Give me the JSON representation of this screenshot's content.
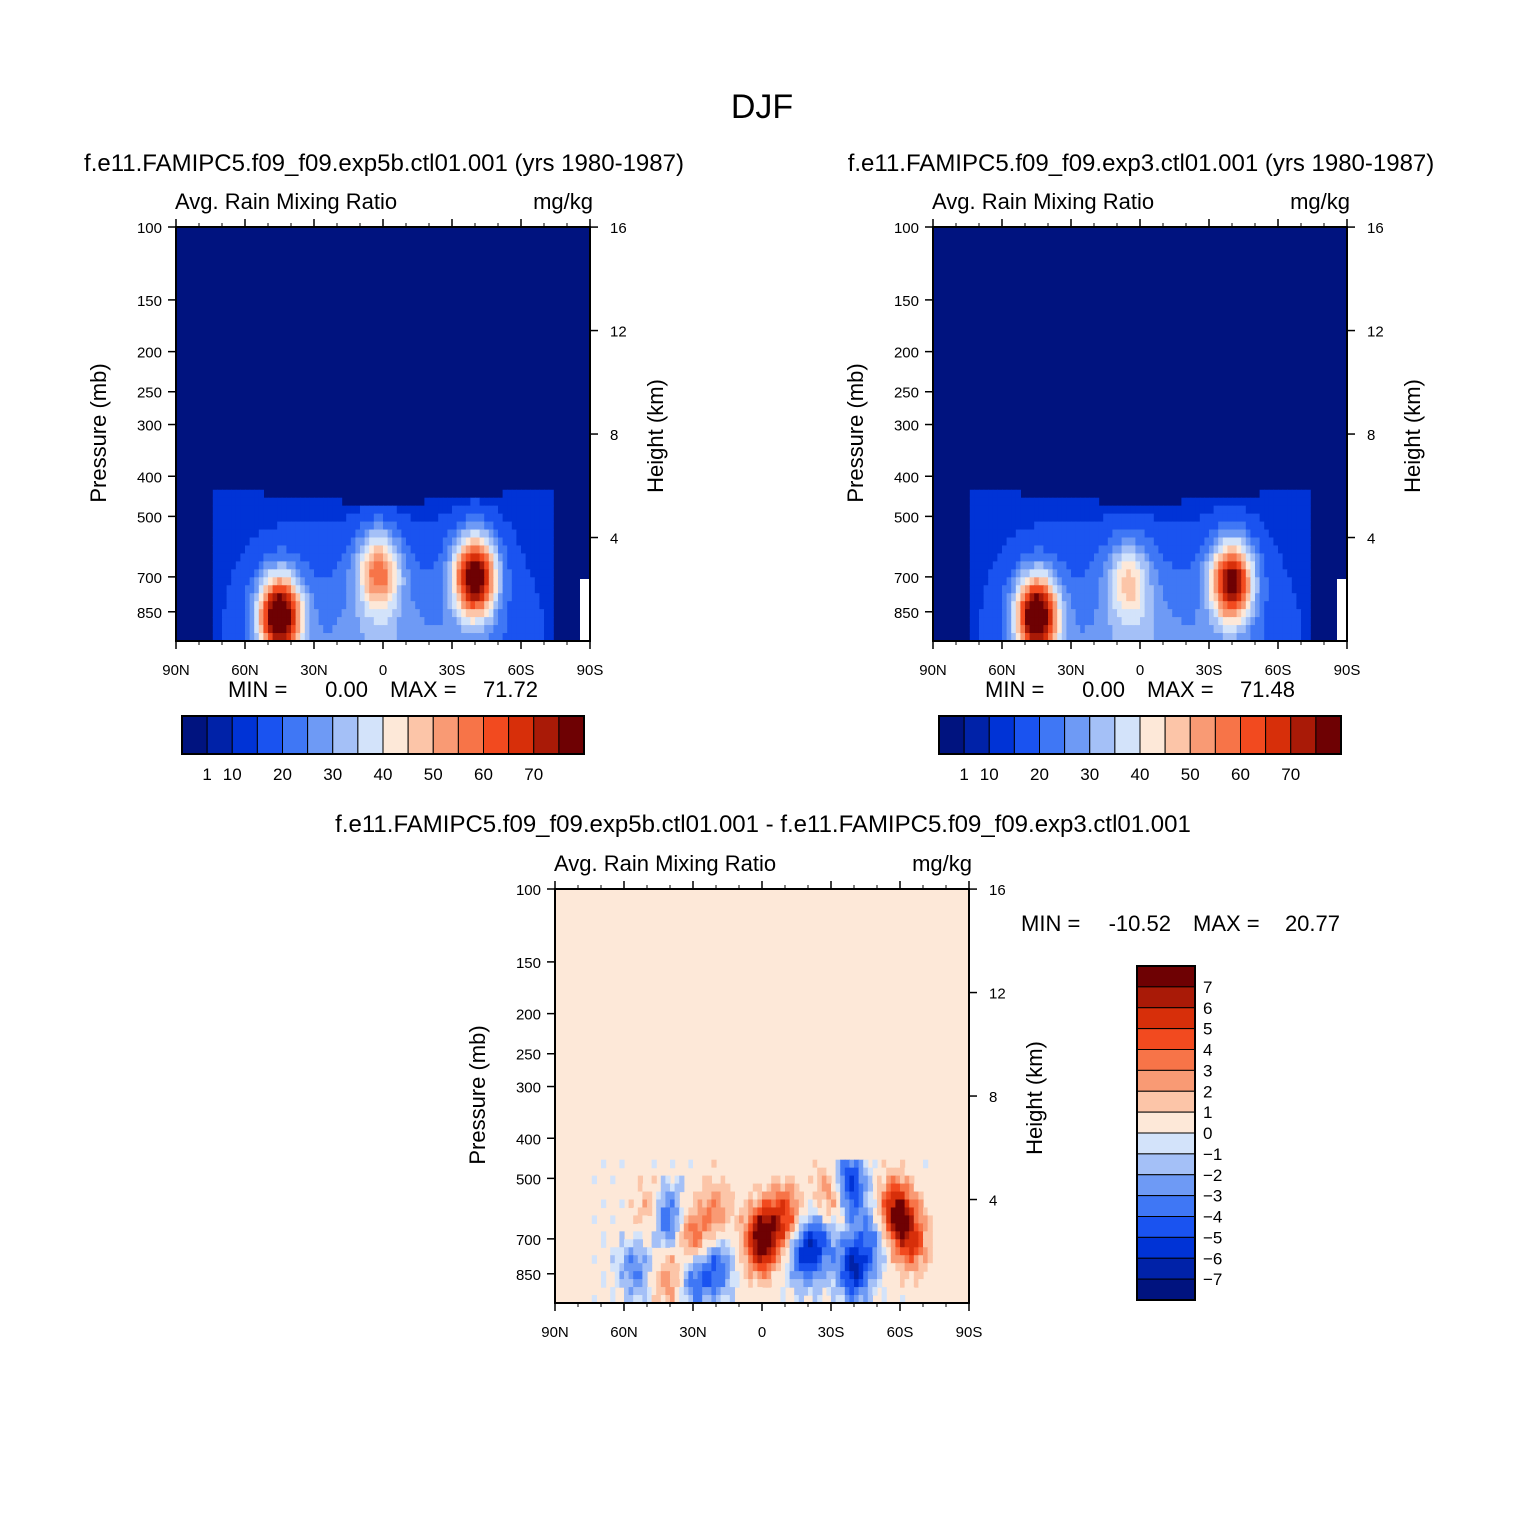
{
  "title": "DJF",
  "colors": {
    "abs": [
      "#00137f",
      "#0022a8",
      "#0033d6",
      "#1a53f0",
      "#3f77f5",
      "#6e9af5",
      "#a4c0f7",
      "#d3e3fa",
      "#fde8d8",
      "#fcc5a8",
      "#f99a74",
      "#f77448",
      "#f24a1f",
      "#d72f0a",
      "#a91a07",
      "#6e0103"
    ],
    "diff": [
      "#00137f",
      "#0022a8",
      "#0033d6",
      "#1a53f0",
      "#3f77f5",
      "#6e9af5",
      "#a4c0f7",
      "#d3e3fa",
      "#fde8d8",
      "#fcc5a8",
      "#f99a74",
      "#f77448",
      "#f24a1f",
      "#d72f0a",
      "#a91a07",
      "#6e0103"
    ]
  },
  "chart_data": [
    {
      "type": "heatmap",
      "id": "top-left",
      "title": "f.e11.FAMIPC5.f09_f09.exp5b.ctl01.001 (yrs 1980-1987)",
      "left_label": "Avg. Rain Mixing Ratio",
      "right_label": "mg/kg",
      "ylabel": "Pressure (mb)",
      "ylabel_right": "Height (km)",
      "x_ticks": [
        "90N",
        "60N",
        "30N",
        "0",
        "30S",
        "60S",
        "90S"
      ],
      "y_ticks": [
        "100",
        "150",
        "200",
        "250",
        "300",
        "400",
        "500",
        "700",
        "850"
      ],
      "y_ticks_right": [
        "16",
        "12",
        "8",
        "4"
      ],
      "min_label": "MIN =",
      "min_value": "0.00",
      "max_label": "MAX =",
      "max_value": "71.72",
      "colorbar_labels": [
        "1",
        "10",
        "20",
        "30",
        "40",
        "50",
        "60",
        "70"
      ],
      "blobs": [
        {
          "lat": 45,
          "p": 870,
          "amp": 72
        },
        {
          "lat": -40,
          "p": 700,
          "amp": 68
        },
        {
          "lat": 2,
          "p": 680,
          "amp": 38
        }
      ]
    },
    {
      "type": "heatmap",
      "id": "top-right",
      "title": "f.e11.FAMIPC5.f09_f09.exp3.ctl01.001 (yrs 1980-1987)",
      "left_label": "Avg. Rain Mixing Ratio",
      "right_label": "mg/kg",
      "ylabel": "Pressure (mb)",
      "ylabel_right": "Height (km)",
      "x_ticks": [
        "90N",
        "60N",
        "30N",
        "0",
        "30S",
        "60S",
        "90S"
      ],
      "y_ticks": [
        "100",
        "150",
        "200",
        "250",
        "300",
        "400",
        "500",
        "700",
        "850"
      ],
      "y_ticks_right": [
        "16",
        "12",
        "8",
        "4"
      ],
      "min_label": "MIN =",
      "min_value": "0.00",
      "max_label": "MAX =",
      "max_value": "71.48",
      "colorbar_labels": [
        "1",
        "10",
        "20",
        "30",
        "40",
        "50",
        "60",
        "70"
      ],
      "blobs": [
        {
          "lat": 45,
          "p": 870,
          "amp": 71
        },
        {
          "lat": -40,
          "p": 720,
          "amp": 62
        },
        {
          "lat": 5,
          "p": 720,
          "amp": 25
        }
      ]
    },
    {
      "type": "heatmap",
      "id": "bottom",
      "title": "f.e11.FAMIPC5.f09_f09.exp5b.ctl01.001 - f.e11.FAMIPC5.f09_f09.exp3.ctl01.001",
      "left_label": "Avg. Rain Mixing Ratio",
      "right_label": "mg/kg",
      "ylabel": "Pressure (mb)",
      "ylabel_right": "Height (km)",
      "x_ticks": [
        "90N",
        "60N",
        "30N",
        "0",
        "30S",
        "60S",
        "90S"
      ],
      "y_ticks": [
        "100",
        "150",
        "200",
        "250",
        "300",
        "400",
        "500",
        "700",
        "850"
      ],
      "y_ticks_right": [
        "16",
        "12",
        "8",
        "4"
      ],
      "min_label": "MIN =",
      "min_value": "-10.52",
      "max_label": "MAX =",
      "max_value": "20.77",
      "colorbar_labels": [
        "7",
        "6",
        "5",
        "4",
        "3",
        "2",
        "1",
        "0",
        "-1",
        "-2",
        "-3",
        "-4",
        "-5",
        "-6",
        "-7"
      ],
      "blobs": [
        {
          "lat": 0,
          "p": 700,
          "amp": 9
        },
        {
          "lat": -10,
          "p": 620,
          "amp": 5
        },
        {
          "lat": 30,
          "p": 720,
          "amp": 5
        },
        {
          "lat": 20,
          "p": 600,
          "amp": 3
        },
        {
          "lat": 48,
          "p": 600,
          "amp": 3
        },
        {
          "lat": -58,
          "p": 600,
          "amp": 7
        },
        {
          "lat": -65,
          "p": 700,
          "amp": 5
        },
        {
          "lat": -30,
          "p": 560,
          "amp": 4
        },
        {
          "lat": 40,
          "p": 880,
          "amp": 3
        },
        {
          "lat": -18,
          "p": 760,
          "amp": -5
        },
        {
          "lat": -40,
          "p": 830,
          "amp": -6
        },
        {
          "lat": 30,
          "p": 850,
          "amp": -5
        },
        {
          "lat": 42,
          "p": 620,
          "amp": -5
        },
        {
          "lat": 20,
          "p": 820,
          "amp": -4
        },
        {
          "lat": -38,
          "p": 520,
          "amp": -6
        },
        {
          "lat": -26,
          "p": 700,
          "amp": -4
        },
        {
          "lat": 55,
          "p": 830,
          "amp": -3
        },
        {
          "lat": -48,
          "p": 700,
          "amp": -3
        }
      ]
    }
  ]
}
